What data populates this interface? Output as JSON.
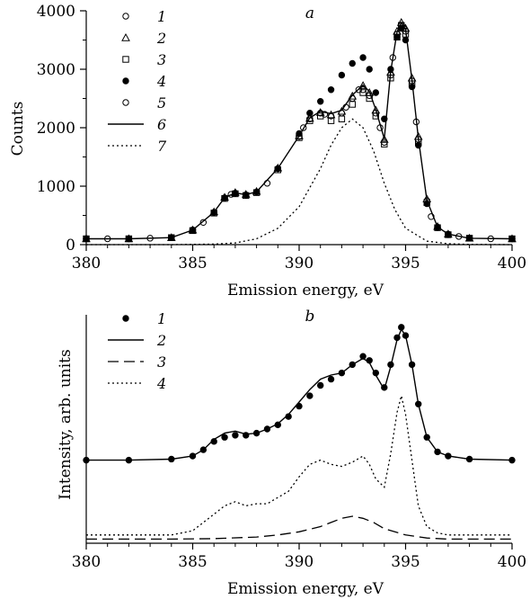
{
  "chart_data": [
    {
      "panel": "a",
      "type": "scatter",
      "title": "a",
      "xlabel": "Emission energy, eV",
      "ylabel": "Counts",
      "xlim": [
        380,
        400
      ],
      "ylim": [
        0,
        4000
      ],
      "xticks": [
        380,
        385,
        390,
        395,
        400
      ],
      "yticks": [
        0,
        1000,
        2000,
        3000,
        4000
      ],
      "grid": false,
      "legend_position": "top-left",
      "series": [
        {
          "name": "1",
          "marker": "open-circle",
          "x": [
            380,
            382,
            384,
            385,
            386,
            386.5,
            387,
            387.5,
            388,
            389,
            390,
            390.5,
            391,
            391.5,
            392,
            392.5,
            393,
            393.3,
            393.6,
            394,
            394.3,
            394.6,
            394.8,
            395,
            395.3,
            395.6,
            396,
            396.5,
            397,
            398,
            400
          ],
          "y": [
            100,
            100,
            120,
            250,
            550,
            800,
            880,
            850,
            900,
            1300,
            1850,
            2150,
            2250,
            2200,
            2250,
            2500,
            2650,
            2550,
            2250,
            1750,
            2900,
            3600,
            3750,
            3650,
            2800,
            1800,
            750,
            300,
            180,
            110,
            100
          ]
        },
        {
          "name": "2",
          "marker": "open-triangle",
          "x": [
            380,
            382,
            384,
            385,
            386,
            386.5,
            387,
            387.5,
            388,
            389,
            390,
            390.5,
            391,
            391.5,
            392,
            392.5,
            393,
            393.3,
            393.6,
            394,
            394.3,
            394.6,
            394.8,
            395,
            395.3,
            395.6,
            396,
            396.5,
            397,
            398,
            400
          ],
          "y": [
            100,
            100,
            120,
            250,
            560,
            810,
            890,
            860,
            910,
            1310,
            1860,
            2160,
            2260,
            2220,
            2280,
            2540,
            2720,
            2600,
            2300,
            1800,
            2950,
            3650,
            3800,
            3700,
            2850,
            1850,
            780,
            310,
            180,
            110,
            100
          ]
        },
        {
          "name": "3",
          "marker": "open-square",
          "x": [
            380,
            382,
            384,
            385,
            386,
            386.5,
            387,
            387.5,
            388,
            389,
            390,
            390.5,
            391,
            391.5,
            392,
            392.5,
            393,
            393.3,
            393.6,
            394,
            394.3,
            394.6,
            394.8,
            395,
            395.3,
            395.6,
            396,
            396.5,
            397,
            398,
            400
          ],
          "y": [
            100,
            100,
            120,
            240,
            540,
            790,
            870,
            840,
            890,
            1280,
            1830,
            2120,
            2200,
            2120,
            2150,
            2400,
            2600,
            2500,
            2200,
            1720,
            2850,
            3550,
            3750,
            3600,
            2750,
            1750,
            720,
            290,
            170,
            110,
            100
          ]
        },
        {
          "name": "4",
          "marker": "filled-circle",
          "x": [
            380,
            382,
            384,
            385,
            386,
            386.5,
            387,
            387.5,
            388,
            389,
            390,
            390.5,
            391,
            391.5,
            392,
            392.5,
            393,
            393.3,
            393.6,
            394,
            394.3,
            394.6,
            394.8,
            395,
            395.3,
            395.6,
            396,
            396.5,
            397,
            398,
            400
          ],
          "y": [
            100,
            100,
            120,
            250,
            550,
            800,
            880,
            850,
            900,
            1300,
            1900,
            2250,
            2450,
            2650,
            2900,
            3100,
            3200,
            3000,
            2600,
            2150,
            3000,
            3550,
            3700,
            3500,
            2700,
            1700,
            700,
            290,
            170,
            110,
            100
          ]
        },
        {
          "name": "5",
          "marker": "open-circle",
          "x": [
            381,
            383,
            385.5,
            386.8,
            388.5,
            390.2,
            391.2,
            392.2,
            392.8,
            393.8,
            394.4,
            394.9,
            395.5,
            396.2,
            397.5,
            399
          ],
          "y": [
            100,
            110,
            380,
            860,
            1050,
            2000,
            2230,
            2350,
            2650,
            2000,
            3200,
            3700,
            2100,
            480,
            140,
            100
          ]
        },
        {
          "name": "6",
          "marker": "solid-line",
          "x": [
            380,
            382,
            384,
            385,
            386,
            386.5,
            387,
            387.5,
            388,
            389,
            390,
            390.5,
            391,
            391.5,
            392,
            392.5,
            393,
            393.3,
            393.6,
            394,
            394.3,
            394.6,
            394.8,
            395,
            395.3,
            395.6,
            396,
            396.5,
            397,
            398,
            400
          ],
          "y": [
            100,
            100,
            120,
            250,
            555,
            805,
            885,
            855,
            905,
            1305,
            1860,
            2170,
            2280,
            2240,
            2300,
            2560,
            2730,
            2620,
            2310,
            1810,
            2960,
            3640,
            3800,
            3680,
            2820,
            1820,
            760,
            305,
            180,
            110,
            100
          ]
        },
        {
          "name": "7",
          "marker": "dotted-line",
          "x": [
            380,
            384,
            386,
            387,
            388,
            389,
            390,
            391,
            391.5,
            392,
            392.5,
            393,
            393.5,
            394,
            394.5,
            395,
            396,
            397,
            398,
            400
          ],
          "y": [
            0,
            0,
            10,
            30,
            100,
            280,
            650,
            1300,
            1700,
            2000,
            2150,
            2000,
            1600,
            1050,
            600,
            280,
            60,
            15,
            5,
            0
          ]
        }
      ]
    },
    {
      "panel": "b",
      "type": "line",
      "title": "b",
      "xlabel": "Emission energy, eV",
      "ylabel": "Intensity, arb. units",
      "xlim": [
        380,
        400
      ],
      "ylim": [
        0,
        1.1
      ],
      "xticks": [
        380,
        385,
        390,
        395,
        400
      ],
      "yticks": [],
      "grid": false,
      "legend_position": "top-left",
      "series": [
        {
          "name": "1",
          "marker": "filled-circle",
          "x": [
            380,
            382,
            384,
            385,
            385.5,
            386,
            386.5,
            387,
            387.5,
            388,
            388.5,
            389,
            389.5,
            390,
            390.5,
            391,
            391.5,
            392,
            392.5,
            393,
            393.3,
            393.6,
            394,
            394.3,
            394.6,
            394.8,
            395,
            395.3,
            395.6,
            396,
            396.5,
            397,
            398,
            400
          ],
          "y": [
            0.4,
            0.4,
            0.405,
            0.42,
            0.45,
            0.49,
            0.51,
            0.52,
            0.52,
            0.53,
            0.55,
            0.57,
            0.61,
            0.66,
            0.71,
            0.76,
            0.79,
            0.82,
            0.86,
            0.9,
            0.88,
            0.82,
            0.75,
            0.86,
            0.99,
            1.04,
            1.0,
            0.86,
            0.67,
            0.51,
            0.44,
            0.42,
            0.405,
            0.4
          ]
        },
        {
          "name": "2",
          "marker": "solid-line",
          "x": [
            380,
            382,
            384,
            385,
            385.5,
            386,
            386.5,
            387,
            387.5,
            388,
            388.5,
            389,
            389.5,
            390,
            390.5,
            391,
            391.5,
            392,
            392.5,
            393,
            393.3,
            393.6,
            394,
            394.3,
            394.6,
            394.8,
            395,
            395.3,
            395.6,
            396,
            396.5,
            397,
            398,
            400
          ],
          "y": [
            0.4,
            0.4,
            0.405,
            0.42,
            0.45,
            0.5,
            0.53,
            0.54,
            0.525,
            0.53,
            0.55,
            0.575,
            0.62,
            0.68,
            0.74,
            0.79,
            0.81,
            0.82,
            0.86,
            0.89,
            0.87,
            0.81,
            0.74,
            0.85,
            0.98,
            1.03,
            1.0,
            0.86,
            0.67,
            0.51,
            0.44,
            0.42,
            0.405,
            0.4
          ]
        },
        {
          "name": "3",
          "marker": "dashed-line",
          "x": [
            380,
            384,
            386,
            388,
            389,
            390,
            391,
            391.5,
            392,
            392.5,
            393,
            393.5,
            394,
            395,
            396,
            397,
            398,
            400
          ],
          "y": [
            0.02,
            0.02,
            0.022,
            0.03,
            0.04,
            0.055,
            0.08,
            0.1,
            0.12,
            0.13,
            0.12,
            0.1,
            0.07,
            0.04,
            0.025,
            0.02,
            0.02,
            0.02
          ]
        },
        {
          "name": "4",
          "marker": "dotted-line",
          "x": [
            380,
            384,
            385,
            385.5,
            386,
            386.5,
            387,
            387.5,
            388,
            388.5,
            389,
            389.5,
            390,
            390.5,
            391,
            391.5,
            392,
            392.5,
            393,
            393.3,
            393.6,
            394,
            394.3,
            394.6,
            394.8,
            395,
            395.3,
            395.6,
            396,
            396.5,
            397,
            398,
            400
          ],
          "y": [
            0.04,
            0.04,
            0.06,
            0.1,
            0.14,
            0.18,
            0.2,
            0.18,
            0.19,
            0.19,
            0.22,
            0.25,
            0.32,
            0.38,
            0.4,
            0.38,
            0.37,
            0.39,
            0.42,
            0.38,
            0.31,
            0.27,
            0.43,
            0.63,
            0.71,
            0.62,
            0.4,
            0.18,
            0.08,
            0.05,
            0.04,
            0.04,
            0.04
          ]
        }
      ]
    }
  ]
}
